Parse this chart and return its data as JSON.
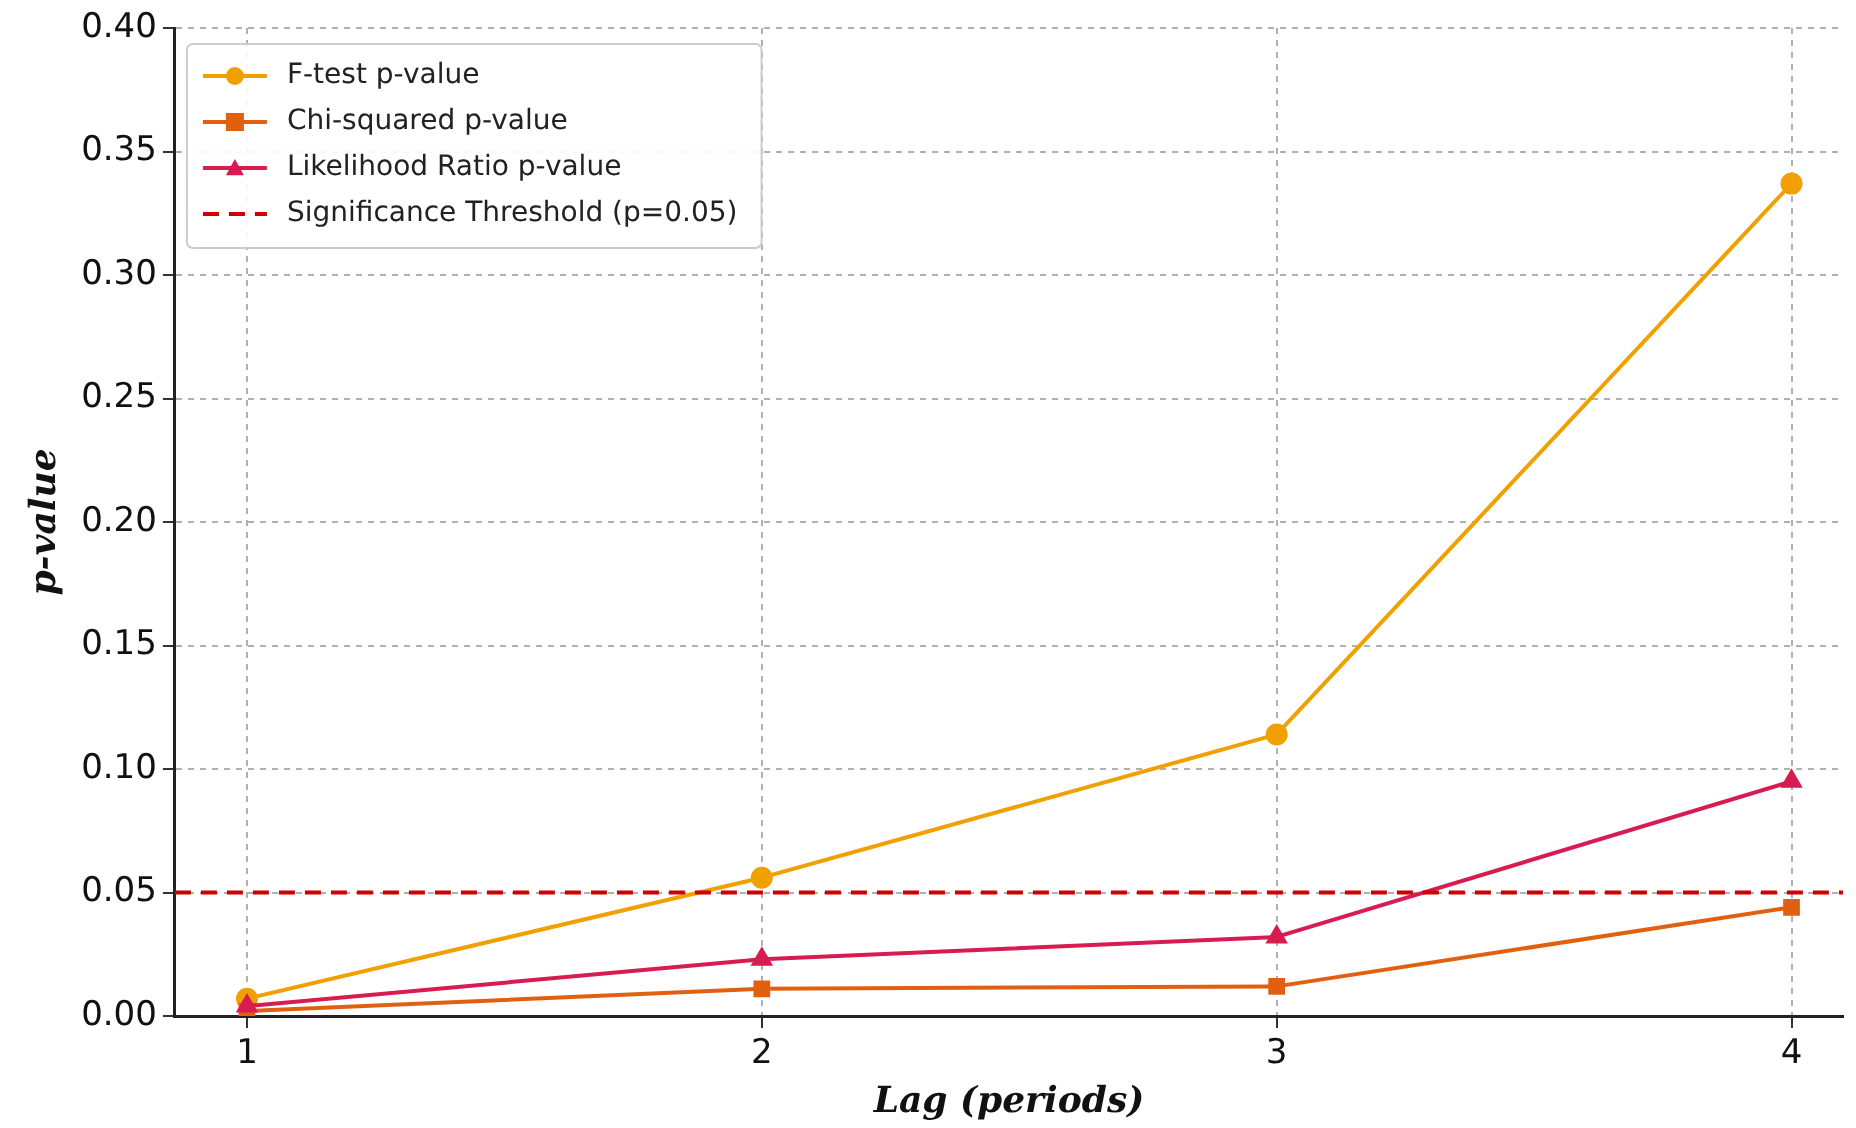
{
  "chart_data": {
    "type": "line",
    "xlabel": "Lag (periods)",
    "ylabel": "p-value",
    "x": [
      1,
      2,
      3,
      4
    ],
    "series": [
      {
        "name": "F-test p-value",
        "color": "#f0a000",
        "marker": "circle",
        "values": [
          0.007,
          0.056,
          0.114,
          0.337
        ]
      },
      {
        "name": "Chi-squared p-value",
        "color": "#e06010",
        "marker": "square",
        "values": [
          0.002,
          0.011,
          0.012,
          0.044
        ]
      },
      {
        "name": "Likelihood Ratio p-value",
        "color": "#d81b50",
        "marker": "triangle",
        "values": [
          0.004,
          0.023,
          0.032,
          0.095
        ]
      }
    ],
    "ref_lines": [
      {
        "axis": "y",
        "value": 0.05,
        "label": "Significance Threshold (p=0.05)",
        "color": "#cc0000",
        "line_style": "dashed"
      }
    ],
    "xlim": [
      0.86,
      4.1
    ],
    "xticks": [
      1,
      2,
      3,
      4
    ],
    "ylim": [
      0,
      0.4
    ],
    "yticks": [
      {
        "value": 0,
        "label": "0.00"
      },
      {
        "value": 0.05,
        "label": "0.05"
      },
      {
        "value": 0.1,
        "label": "0.10"
      },
      {
        "value": 0.15,
        "label": "0.15"
      },
      {
        "value": 0.2,
        "label": "0.20"
      },
      {
        "value": 0.25,
        "label": "0.25"
      },
      {
        "value": 0.3,
        "label": "0.30"
      },
      {
        "value": 0.35,
        "label": "0.35"
      },
      {
        "value": 0.4,
        "label": "0.40"
      }
    ],
    "grid": true,
    "legend": "top left",
    "line_style": "solid"
  }
}
